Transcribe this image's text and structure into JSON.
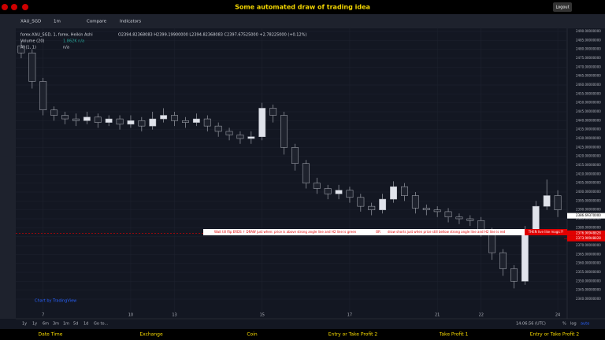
{
  "header": {
    "title": "Some automated draw of trading idea",
    "logout": "Logout"
  },
  "toolbar": {
    "symbol": "XAU_SGD",
    "interval": "1m",
    "compare": "Compare",
    "indicators": "Indicators"
  },
  "legend": {
    "series": "forex:XAU_SGD, 1, forex, Heikin Ashi",
    "ohlc": "O2394.82368083  H2399.19900000  L2394.82368083  C2397.67525000  +2.78225000 (+0.12%)",
    "volume": "Volume (20)",
    "volume_value": "1.862K  n/a",
    "ai": "AI (1, 1)",
    "ai_value": "n/a"
  },
  "annotation": {
    "text1": "Wait till flip ERDS ↑  DRAW just when:  price is above strong angle line and H2 line is green",
    "or": "OR",
    "text2": "draw shorts just when price still bellow strong angle line and H2 line is red",
    "text3": "THEN live like magic?!"
  },
  "watermark": "Chart by TradingView",
  "timeframes": [
    "1y",
    "1y",
    "6m",
    "3m",
    "1m",
    "5d",
    "1d",
    "Go to..."
  ],
  "status": {
    "time": "14:06:56 (UTC)",
    "percent": "%",
    "log": "log",
    "auto": "auto"
  },
  "nav": [
    "Date Time",
    "Exchange",
    "Coin",
    "Entry or Take Profit 2",
    "Take Profit 1",
    "Entry or Take Profit 2"
  ],
  "chart_data": {
    "type": "candlestick",
    "open": [
      2482,
      2478,
      2462,
      2446,
      2443,
      2441,
      2440,
      2442,
      2439,
      2441,
      2438,
      2440,
      2437,
      2441,
      2443,
      2440,
      2439,
      2441,
      2437,
      2434,
      2432,
      2430,
      2431,
      2447,
      2443,
      2425,
      2416,
      2405,
      2402,
      2399,
      2401,
      2397,
      2392,
      2390,
      2396,
      2403,
      2398,
      2391,
      2390,
      2389,
      2386,
      2385,
      2384,
      2378,
      2366,
      2357,
      2350,
      2378,
      2392,
      2398
    ],
    "high": [
      2485,
      2480,
      2464,
      2448,
      2445,
      2444,
      2445,
      2444,
      2443,
      2443,
      2443,
      2442,
      2445,
      2447,
      2445,
      2442,
      2444,
      2443,
      2439,
      2436,
      2434,
      2434,
      2450,
      2449,
      2445,
      2427,
      2418,
      2408,
      2404,
      2404,
      2403,
      2399,
      2394,
      2399,
      2406,
      2405,
      2400,
      2393,
      2392,
      2391,
      2388,
      2387,
      2386,
      2380,
      2368,
      2359,
      2381,
      2395,
      2407,
      2401
    ],
    "low": [
      2475,
      2458,
      2443,
      2440,
      2438,
      2437,
      2438,
      2436,
      2437,
      2435,
      2436,
      2434,
      2435,
      2439,
      2437,
      2436,
      2437,
      2434,
      2431,
      2429,
      2427,
      2427,
      2429,
      2439,
      2421,
      2412,
      2402,
      2399,
      2396,
      2396,
      2394,
      2389,
      2387,
      2388,
      2394,
      2395,
      2388,
      2387,
      2386,
      2383,
      2382,
      2381,
      2375,
      2362,
      2353,
      2346,
      2348,
      2376,
      2390,
      2386
    ],
    "close": [
      2478,
      2462,
      2446,
      2443,
      2441,
      2440,
      2442,
      2439,
      2441,
      2438,
      2440,
      2437,
      2441,
      2443,
      2440,
      2439,
      2441,
      2437,
      2434,
      2432,
      2430,
      2431,
      2447,
      2443,
      2425,
      2416,
      2405,
      2402,
      2399,
      2401,
      2397,
      2392,
      2390,
      2396,
      2403,
      2398,
      2391,
      2390,
      2389,
      2386,
      2385,
      2384,
      2378,
      2366,
      2357,
      2350,
      2378,
      2392,
      2398,
      2390
    ],
    "xlim": [
      -0.5,
      49.5
    ],
    "xticks": [
      {
        "value": 2,
        "label": "7"
      },
      {
        "value": 10,
        "label": "10"
      },
      {
        "value": 14,
        "label": "13"
      },
      {
        "value": 22,
        "label": "15"
      },
      {
        "value": 30,
        "label": "17"
      },
      {
        "value": 38,
        "label": "21"
      },
      {
        "value": 42,
        "label": "22"
      },
      {
        "value": 49,
        "label": "24"
      }
    ],
    "ylim": [
      2340,
      2490
    ],
    "yticks": [
      {
        "value": 2340,
        "label": "2340.00000000"
      },
      {
        "value": 2345,
        "label": "2345.00000000"
      },
      {
        "value": 2350,
        "label": "2350.00000000"
      },
      {
        "value": 2355,
        "label": "2355.00000000"
      },
      {
        "value": 2360,
        "label": "2360.00000000"
      },
      {
        "value": 2365,
        "label": "2365.00000000"
      },
      {
        "value": 2370,
        "label": "2370.00000000"
      },
      {
        "value": 2375,
        "label": "2375.00000000"
      },
      {
        "value": 2380,
        "label": "2380.00000000"
      },
      {
        "value": 2385,
        "label": "2385.00000000"
      },
      {
        "value": 2390,
        "label": "2390.00000000"
      },
      {
        "value": 2395,
        "label": "2395.00000000"
      },
      {
        "value": 2400,
        "label": "2400.00000000"
      },
      {
        "value": 2405,
        "label": "2405.00000000"
      },
      {
        "value": 2410,
        "label": "2410.00000000"
      },
      {
        "value": 2415,
        "label": "2415.00000000"
      },
      {
        "value": 2420,
        "label": "2420.00000000"
      },
      {
        "value": 2425,
        "label": "2425.00000000"
      },
      {
        "value": 2430,
        "label": "2430.00000000"
      },
      {
        "value": 2435,
        "label": "2435.00000000"
      },
      {
        "value": 2440,
        "label": "2440.00000000"
      },
      {
        "value": 2445,
        "label": "2445.00000000"
      },
      {
        "value": 2450,
        "label": "2450.00000000"
      },
      {
        "value": 2455,
        "label": "2455.00000000"
      },
      {
        "value": 2460,
        "label": "2460.00000000"
      },
      {
        "value": 2465,
        "label": "2465.00000000"
      },
      {
        "value": 2470,
        "label": "2470.00000000"
      },
      {
        "value": 2475,
        "label": "2475.00000000"
      },
      {
        "value": 2480,
        "label": "2480.00000000"
      },
      {
        "value": 2485,
        "label": "2485.00000000"
      },
      {
        "value": 2490,
        "label": "2490.00000000"
      }
    ],
    "last_price": {
      "value": 2386.6937,
      "label": "2386.69370000"
    },
    "price_lines": [
      {
        "value": 2376.90948828,
        "label": "2376.90948828",
        "color": "#e00000"
      },
      {
        "value": 2373.90948828,
        "label": "2373.90948828",
        "color": "#e00000"
      }
    ],
    "up_color": "#e0e3eb",
    "down_color": "#1e222d",
    "grid": true
  }
}
